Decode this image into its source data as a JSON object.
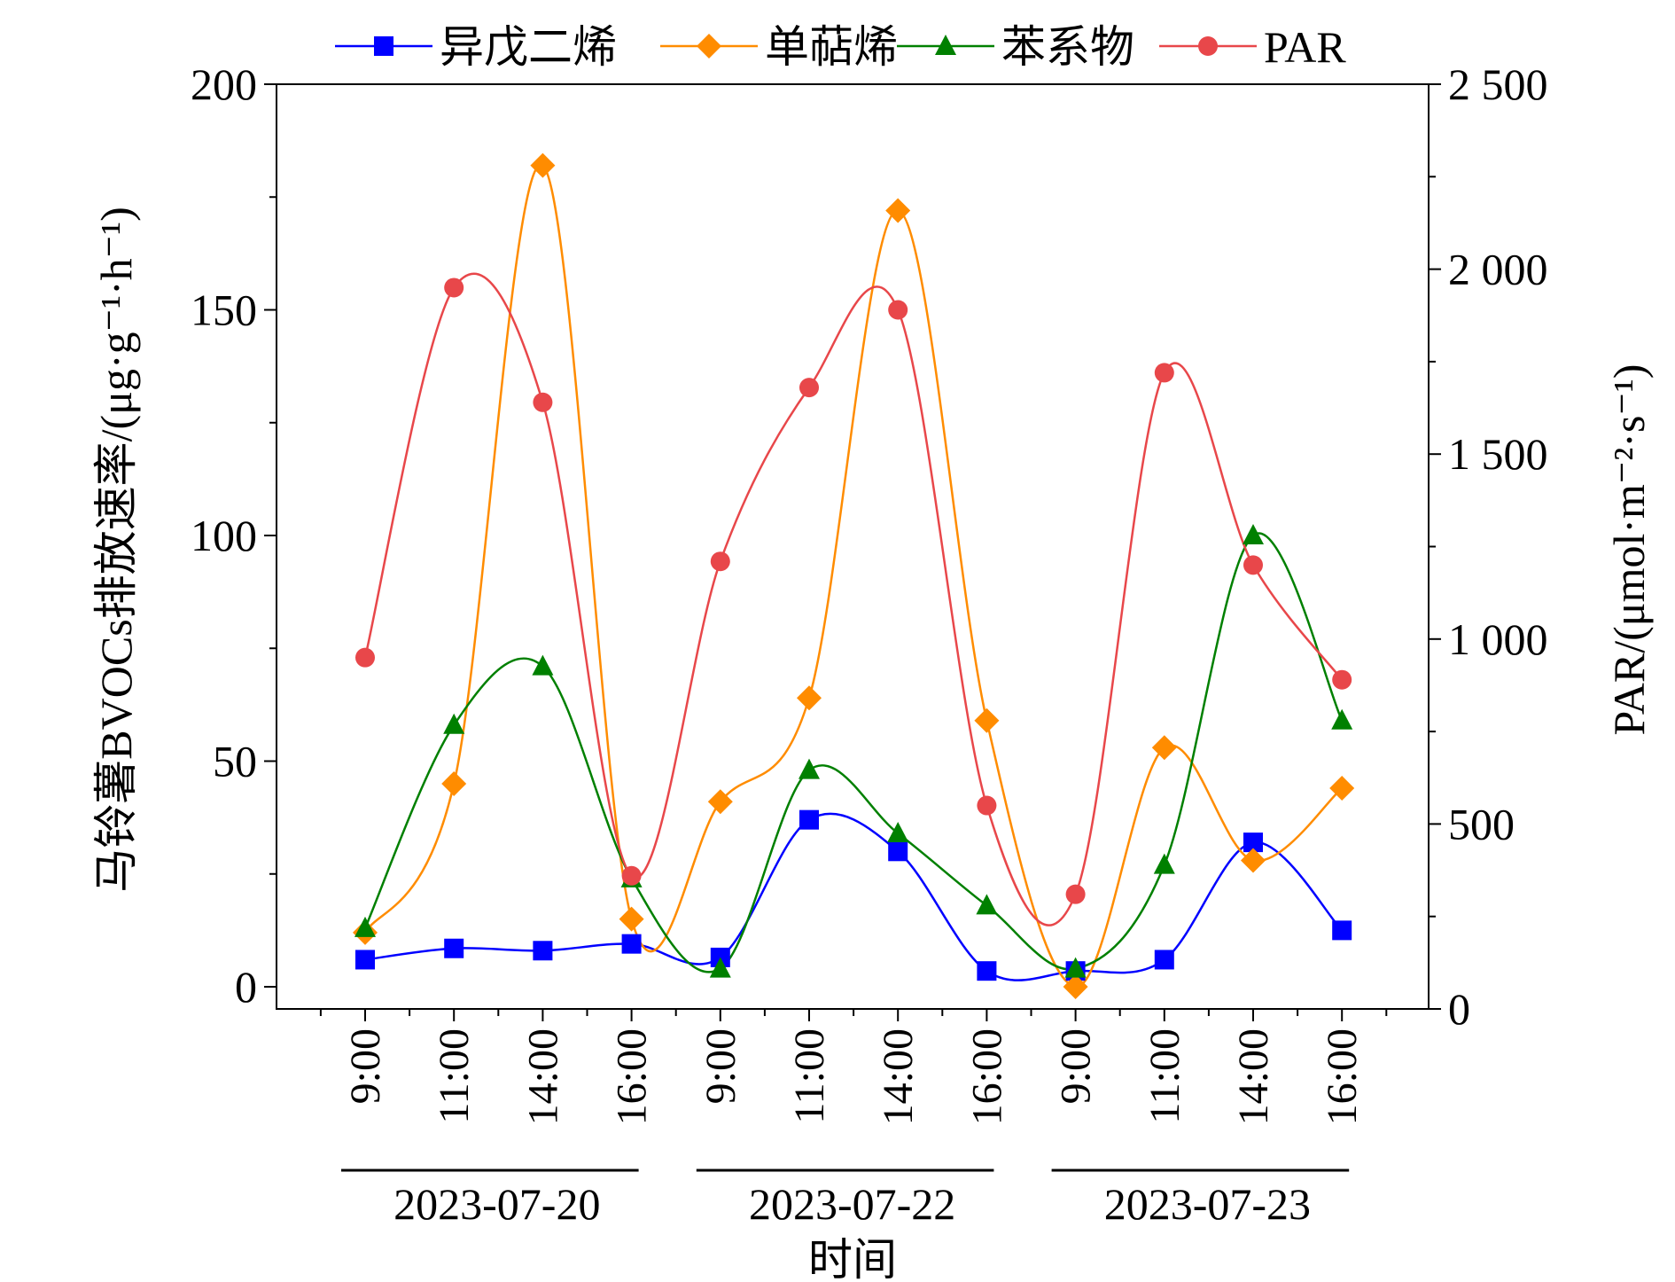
{
  "chart_data": {
    "type": "line",
    "xlabel": "时间",
    "ylabel_left": "马铃薯BVOCs排放速率/(μg·g⁻¹·h⁻¹)",
    "ylabel_right": "PAR/(μmol·m⁻²·s⁻¹)",
    "ylim_left": [
      0,
      200
    ],
    "ylim_right": [
      0,
      2500
    ],
    "yticks_left": [
      "0",
      "50",
      "100",
      "150",
      "200"
    ],
    "yticks_right": [
      "0",
      "500",
      "1 000",
      "1 500",
      "2 000",
      "2 500"
    ],
    "categories": [
      "9:00",
      "11:00",
      "14:00",
      "16:00",
      "9:00",
      "11:00",
      "14:00",
      "16:00",
      "9:00",
      "11:00",
      "14:00",
      "16:00"
    ],
    "date_groups": [
      {
        "label": "2023-07-20",
        "start": 0,
        "end": 3
      },
      {
        "label": "2023-07-22",
        "start": 4,
        "end": 7
      },
      {
        "label": "2023-07-23",
        "start": 8,
        "end": 11
      }
    ],
    "legend_position": "top",
    "grid": false,
    "series": [
      {
        "name": "异戊二烯",
        "axis": "left",
        "color": "#0000ff",
        "marker": "square",
        "values": [
          6,
          8.5,
          8,
          9.5,
          6.5,
          37,
          30,
          3.5,
          3.5,
          6,
          32,
          12.5
        ]
      },
      {
        "name": "单萜烯",
        "axis": "left",
        "color": "#ff8c00",
        "marker": "diamond",
        "values": [
          12,
          45,
          182,
          15,
          41,
          64,
          172,
          59,
          0,
          53,
          28,
          44
        ]
      },
      {
        "name": "苯系物",
        "axis": "left",
        "color": "#008000",
        "marker": "triangle",
        "values": [
          13,
          58,
          71,
          24,
          4,
          48,
          34,
          18,
          4,
          27,
          100,
          59
        ]
      },
      {
        "name": "PAR",
        "axis": "right",
        "color": "#e8474a",
        "marker": "circle",
        "values": [
          950,
          1950,
          1640,
          360,
          1210,
          1680,
          1890,
          550,
          310,
          1720,
          1200,
          890
        ]
      }
    ]
  }
}
